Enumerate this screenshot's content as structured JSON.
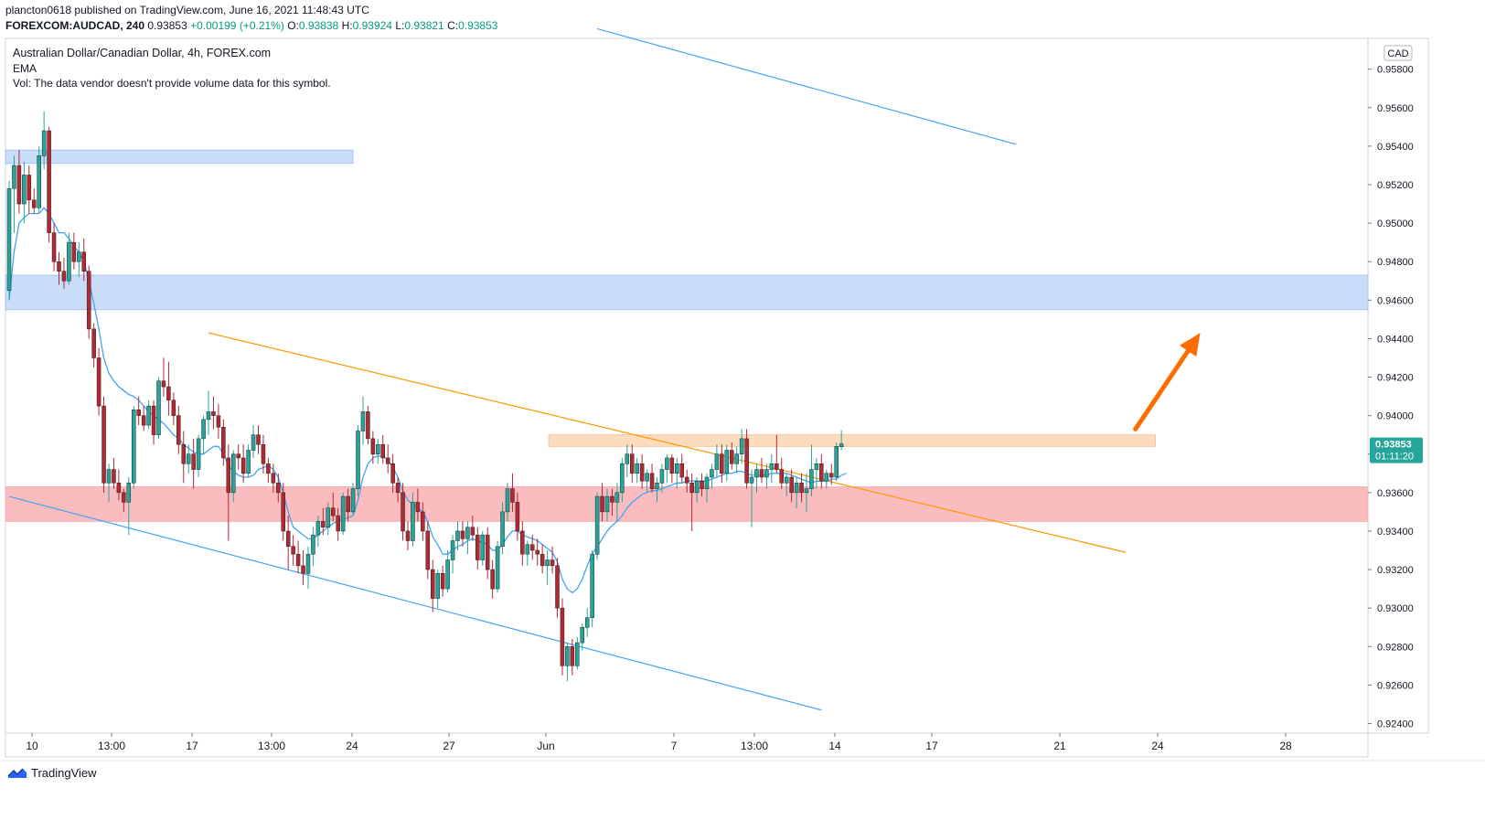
{
  "header": {
    "publisher_line": "plancton0618 published on TradingView.com, June 16, 2021 11:48:43 UTC",
    "symbol": "FOREXCOM:AUDCAD, 240",
    "last": "0.93853",
    "change": "+0.00199 (+0.21%)",
    "o_label": "O:",
    "o_value": "0.93838",
    "h_label": "H:",
    "h_value": "0.93924",
    "l_label": "L:",
    "l_value": "0.93821",
    "c_label": "C:",
    "c_value": "0.93853"
  },
  "legend": {
    "instrument": "Australian Dollar/Canadian Dollar, 4h, FOREX.com",
    "indicator": "EMA",
    "volume_note": "Vol: The data vendor doesn't provide volume data for this symbol."
  },
  "footer": {
    "brand": "TradingView"
  },
  "colors": {
    "up": "#26a69a",
    "down": "#b22833",
    "ema": "#42a5f5",
    "blue_zone": "#c9dcf8",
    "red_zone": "#fbbcbf",
    "orange_zone": "#fcdcbf",
    "blue_line": "#42a5f5",
    "orange_line": "#ff9800",
    "arrow": "#ff6d00",
    "price_label": "#26a69a"
  },
  "chart_data": {
    "type": "candlestick",
    "currency_label": "CAD",
    "current_price_label": "0.93853",
    "countdown_label": "01:11:20",
    "ylim": [
      0.9235,
      0.9596
    ],
    "y_ticks": [
      "0.95800",
      "0.95600",
      "0.95400",
      "0.95200",
      "0.95000",
      "0.94800",
      "0.94600",
      "0.94400",
      "0.94200",
      "0.94000",
      "0.93800",
      "0.93600",
      "0.93400",
      "0.93200",
      "0.93000",
      "0.92800",
      "0.92600",
      "0.92400"
    ],
    "x_ticks": [
      {
        "label": "10",
        "date": "2021-05-10"
      },
      {
        "label": "13:00",
        "date": "2021-05-13 13:00"
      },
      {
        "label": "17",
        "date": "2021-05-17"
      },
      {
        "label": "13:00",
        "date": "2021-05-20 13:00"
      },
      {
        "label": "24",
        "date": "2021-05-24"
      },
      {
        "label": "27",
        "date": "2021-05-27"
      },
      {
        "label": "Jun",
        "date": "2021-06-01"
      },
      {
        "label": "7",
        "date": "2021-06-07"
      },
      {
        "label": "13:00",
        "date": "2021-06-10 13:00"
      },
      {
        "label": "14",
        "date": "2021-06-14"
      },
      {
        "label": "17",
        "date": "2021-06-17"
      },
      {
        "label": "21",
        "date": "2021-06-21"
      },
      {
        "label": "24",
        "date": "2021-06-24"
      },
      {
        "label": "28",
        "date": "2021-06-28"
      }
    ],
    "candles": [
      [
        0.9465,
        0.9522,
        0.946,
        0.9518
      ],
      [
        0.9518,
        0.9535,
        0.9495,
        0.953
      ],
      [
        0.953,
        0.9538,
        0.9505,
        0.951
      ],
      [
        0.951,
        0.9532,
        0.95,
        0.9525
      ],
      [
        0.9525,
        0.953,
        0.9505,
        0.9512
      ],
      [
        0.9512,
        0.9518,
        0.9505,
        0.9508
      ],
      [
        0.9508,
        0.954,
        0.9505,
        0.9535
      ],
      [
        0.9535,
        0.9558,
        0.9528,
        0.9548
      ],
      [
        0.9548,
        0.955,
        0.949,
        0.9495
      ],
      [
        0.9495,
        0.95,
        0.9475,
        0.948
      ],
      [
        0.948,
        0.9485,
        0.9468,
        0.9475
      ],
      [
        0.9475,
        0.9482,
        0.9466,
        0.947
      ],
      [
        0.947,
        0.9495,
        0.9468,
        0.949
      ],
      [
        0.949,
        0.9495,
        0.9476,
        0.948
      ],
      [
        0.948,
        0.949,
        0.9472,
        0.9485
      ],
      [
        0.9485,
        0.9492,
        0.947,
        0.9475
      ],
      [
        0.9475,
        0.9478,
        0.944,
        0.9445
      ],
      [
        0.9445,
        0.9448,
        0.9425,
        0.943
      ],
      [
        0.943,
        0.9435,
        0.94,
        0.9405
      ],
      [
        0.9405,
        0.941,
        0.936,
        0.9365
      ],
      [
        0.9365,
        0.9375,
        0.9355,
        0.9372
      ],
      [
        0.9372,
        0.9378,
        0.9362,
        0.9365
      ],
      [
        0.9365,
        0.9372,
        0.9356,
        0.936
      ],
      [
        0.936,
        0.9362,
        0.935,
        0.9355
      ],
      [
        0.9355,
        0.9368,
        0.9338,
        0.9365
      ],
      [
        0.9365,
        0.9405,
        0.9362,
        0.9403
      ],
      [
        0.9403,
        0.941,
        0.9395,
        0.94
      ],
      [
        0.94,
        0.9405,
        0.9392,
        0.9395
      ],
      [
        0.9395,
        0.9408,
        0.9393,
        0.9405
      ],
      [
        0.9405,
        0.9408,
        0.9385,
        0.939
      ],
      [
        0.939,
        0.942,
        0.9388,
        0.9418
      ],
      [
        0.9418,
        0.943,
        0.941,
        0.9415
      ],
      [
        0.9415,
        0.9428,
        0.94,
        0.9408
      ],
      [
        0.9408,
        0.9412,
        0.9395,
        0.94
      ],
      [
        0.94,
        0.9405,
        0.938,
        0.9385
      ],
      [
        0.9385,
        0.9392,
        0.9365,
        0.9375
      ],
      [
        0.9375,
        0.9385,
        0.937,
        0.938
      ],
      [
        0.938,
        0.9388,
        0.9362,
        0.9372
      ],
      [
        0.9372,
        0.939,
        0.9368,
        0.9388
      ],
      [
        0.9388,
        0.94,
        0.938,
        0.9398
      ],
      [
        0.9398,
        0.9413,
        0.939,
        0.9402
      ],
      [
        0.9402,
        0.941,
        0.9393,
        0.94
      ],
      [
        0.94,
        0.9406,
        0.9388,
        0.9394
      ],
      [
        0.9394,
        0.9398,
        0.9374,
        0.9378
      ],
      [
        0.9378,
        0.9385,
        0.9335,
        0.936
      ],
      [
        0.936,
        0.9382,
        0.9355,
        0.938
      ],
      [
        0.938,
        0.9385,
        0.9372,
        0.9378
      ],
      [
        0.9378,
        0.9385,
        0.9365,
        0.937
      ],
      [
        0.937,
        0.9385,
        0.9368,
        0.9382
      ],
      [
        0.9382,
        0.9395,
        0.9378,
        0.939
      ],
      [
        0.939,
        0.9395,
        0.938,
        0.9385
      ],
      [
        0.9385,
        0.939,
        0.937,
        0.9375
      ],
      [
        0.9375,
        0.9378,
        0.9365,
        0.937
      ],
      [
        0.937,
        0.9375,
        0.936,
        0.9365
      ],
      [
        0.9365,
        0.937,
        0.9355,
        0.936
      ],
      [
        0.936,
        0.9365,
        0.9335,
        0.934
      ],
      [
        0.934,
        0.9348,
        0.932,
        0.9332
      ],
      [
        0.9332,
        0.9338,
        0.9322,
        0.9328
      ],
      [
        0.9328,
        0.9335,
        0.9318,
        0.9322
      ],
      [
        0.9322,
        0.933,
        0.9312,
        0.9318
      ],
      [
        0.9318,
        0.9332,
        0.931,
        0.9328
      ],
      [
        0.9328,
        0.9342,
        0.9322,
        0.9338
      ],
      [
        0.9338,
        0.9348,
        0.9332,
        0.9345
      ],
      [
        0.9345,
        0.9352,
        0.9338,
        0.9342
      ],
      [
        0.9342,
        0.9355,
        0.9338,
        0.9352
      ],
      [
        0.9352,
        0.936,
        0.9345,
        0.9348
      ],
      [
        0.9348,
        0.9352,
        0.9335,
        0.934
      ],
      [
        0.934,
        0.936,
        0.9338,
        0.9358
      ],
      [
        0.9358,
        0.9362,
        0.9345,
        0.935
      ],
      [
        0.935,
        0.9365,
        0.9348,
        0.9362
      ],
      [
        0.9362,
        0.9395,
        0.9358,
        0.9392
      ],
      [
        0.9392,
        0.941,
        0.9385,
        0.9402
      ],
      [
        0.9402,
        0.9405,
        0.9385,
        0.9388
      ],
      [
        0.9388,
        0.9392,
        0.9375,
        0.938
      ],
      [
        0.938,
        0.9388,
        0.9375,
        0.9385
      ],
      [
        0.9385,
        0.939,
        0.9375,
        0.9378
      ],
      [
        0.9378,
        0.9385,
        0.937,
        0.9375
      ],
      [
        0.9375,
        0.938,
        0.936,
        0.9365
      ],
      [
        0.9365,
        0.9368,
        0.9355,
        0.936
      ],
      [
        0.936,
        0.9365,
        0.9335,
        0.934
      ],
      [
        0.934,
        0.9345,
        0.933,
        0.9335
      ],
      [
        0.9335,
        0.936,
        0.9332,
        0.9355
      ],
      [
        0.9355,
        0.9362,
        0.9345,
        0.935
      ],
      [
        0.935,
        0.9355,
        0.9335,
        0.934
      ],
      [
        0.934,
        0.9345,
        0.9315,
        0.932
      ],
      [
        0.932,
        0.9325,
        0.9298,
        0.9305
      ],
      [
        0.9305,
        0.932,
        0.93,
        0.9318
      ],
      [
        0.9318,
        0.9322,
        0.9306,
        0.931
      ],
      [
        0.931,
        0.933,
        0.9308,
        0.9325
      ],
      [
        0.9325,
        0.9338,
        0.9318,
        0.9335
      ],
      [
        0.9335,
        0.9345,
        0.933,
        0.934
      ],
      [
        0.934,
        0.9345,
        0.9332,
        0.9336
      ],
      [
        0.9336,
        0.9345,
        0.9328,
        0.9342
      ],
      [
        0.9342,
        0.9348,
        0.9335,
        0.9338
      ],
      [
        0.9338,
        0.9342,
        0.932,
        0.9325
      ],
      [
        0.9325,
        0.934,
        0.9322,
        0.9338
      ],
      [
        0.9338,
        0.9342,
        0.9315,
        0.932
      ],
      [
        0.932,
        0.9325,
        0.9305,
        0.931
      ],
      [
        0.931,
        0.9335,
        0.9308,
        0.9332
      ],
      [
        0.9332,
        0.9355,
        0.9328,
        0.935
      ],
      [
        0.935,
        0.9365,
        0.9345,
        0.9362
      ],
      [
        0.9362,
        0.937,
        0.935,
        0.9355
      ],
      [
        0.9355,
        0.936,
        0.9335,
        0.934
      ],
      [
        0.934,
        0.9345,
        0.9322,
        0.9328
      ],
      [
        0.9328,
        0.9335,
        0.9322,
        0.9333
      ],
      [
        0.9333,
        0.9338,
        0.9325,
        0.933
      ],
      [
        0.933,
        0.9336,
        0.9322,
        0.9328
      ],
      [
        0.9328,
        0.9333,
        0.9318,
        0.9322
      ],
      [
        0.9322,
        0.933,
        0.9312,
        0.9325
      ],
      [
        0.9325,
        0.9332,
        0.9318,
        0.9322
      ],
      [
        0.9322,
        0.9326,
        0.9295,
        0.93
      ],
      [
        0.93,
        0.9305,
        0.9265,
        0.927
      ],
      [
        0.927,
        0.9282,
        0.9262,
        0.928
      ],
      [
        0.928,
        0.9284,
        0.9265,
        0.927
      ],
      [
        0.927,
        0.9285,
        0.9268,
        0.9282
      ],
      [
        0.9282,
        0.9292,
        0.9278,
        0.929
      ],
      [
        0.929,
        0.93,
        0.9285,
        0.9295
      ],
      [
        0.9295,
        0.933,
        0.929,
        0.9328
      ],
      [
        0.9328,
        0.936,
        0.9325,
        0.9358
      ],
      [
        0.9358,
        0.9365,
        0.9345,
        0.935
      ],
      [
        0.935,
        0.9362,
        0.9345,
        0.9358
      ],
      [
        0.9358,
        0.9362,
        0.9348,
        0.9355
      ],
      [
        0.9355,
        0.9365,
        0.9345,
        0.936
      ],
      [
        0.936,
        0.9378,
        0.9355,
        0.9375
      ],
      [
        0.9375,
        0.9385,
        0.9368,
        0.938
      ],
      [
        0.938,
        0.9385,
        0.9365,
        0.937
      ],
      [
        0.937,
        0.9378,
        0.9365,
        0.9375
      ],
      [
        0.9375,
        0.938,
        0.9362,
        0.9366
      ],
      [
        0.9366,
        0.9372,
        0.936,
        0.937
      ],
      [
        0.937,
        0.9375,
        0.936,
        0.9362
      ],
      [
        0.9362,
        0.9368,
        0.9355,
        0.9365
      ],
      [
        0.9365,
        0.9375,
        0.936,
        0.9372
      ],
      [
        0.9372,
        0.938,
        0.9365,
        0.9378
      ],
      [
        0.9378,
        0.938,
        0.9365,
        0.937
      ],
      [
        0.937,
        0.9378,
        0.9362,
        0.9375
      ],
      [
        0.9375,
        0.938,
        0.9365,
        0.9368
      ],
      [
        0.9368,
        0.9372,
        0.936,
        0.9365
      ],
      [
        0.9365,
        0.937,
        0.934,
        0.936
      ],
      [
        0.936,
        0.9368,
        0.9355,
        0.9366
      ],
      [
        0.9366,
        0.937,
        0.9358,
        0.9362
      ],
      [
        0.9362,
        0.937,
        0.9355,
        0.9368
      ],
      [
        0.9368,
        0.9375,
        0.9362,
        0.9372
      ],
      [
        0.9372,
        0.9385,
        0.9368,
        0.938
      ],
      [
        0.938,
        0.9385,
        0.9365,
        0.937
      ],
      [
        0.937,
        0.9385,
        0.9366,
        0.9382
      ],
      [
        0.9382,
        0.9386,
        0.9372,
        0.9375
      ],
      [
        0.9375,
        0.9384,
        0.937,
        0.938
      ],
      [
        0.938,
        0.9393,
        0.9375,
        0.9388
      ],
      [
        0.9388,
        0.9393,
        0.9362,
        0.9365
      ],
      [
        0.9365,
        0.9372,
        0.9342,
        0.9368
      ],
      [
        0.9368,
        0.9375,
        0.936,
        0.9372
      ],
      [
        0.9372,
        0.9378,
        0.9365,
        0.9368
      ],
      [
        0.9368,
        0.9375,
        0.9362,
        0.9372
      ],
      [
        0.9372,
        0.938,
        0.9365,
        0.9375
      ],
      [
        0.9375,
        0.939,
        0.937,
        0.9372
      ],
      [
        0.9372,
        0.9378,
        0.9362,
        0.9365
      ],
      [
        0.9365,
        0.937,
        0.9358,
        0.9368
      ],
      [
        0.9368,
        0.9372,
        0.9355,
        0.936
      ],
      [
        0.936,
        0.9368,
        0.9352,
        0.9365
      ],
      [
        0.9365,
        0.937,
        0.9355,
        0.936
      ],
      [
        0.936,
        0.937,
        0.935,
        0.9362
      ],
      [
        0.9362,
        0.9385,
        0.9358,
        0.9372
      ],
      [
        0.9372,
        0.9378,
        0.9362,
        0.9375
      ],
      [
        0.9375,
        0.938,
        0.9362,
        0.9366
      ],
      [
        0.9366,
        0.9372,
        0.9362,
        0.937
      ],
      [
        0.937,
        0.9375,
        0.9364,
        0.9368
      ],
      [
        0.9368,
        0.9386,
        0.9366,
        0.9384
      ],
      [
        0.93838,
        0.93924,
        0.93821,
        0.93853
      ]
    ],
    "ema": [
      0.946,
      0.9485,
      0.95,
      0.9503,
      0.9505,
      0.9505,
      0.9505,
      0.9508,
      0.9505,
      0.95,
      0.9495,
      0.9495,
      0.9492,
      0.9488,
      0.9485,
      0.948,
      0.947,
      0.9458,
      0.9445,
      0.943,
      0.9422,
      0.9418,
      0.9415,
      0.9413,
      0.9411,
      0.941,
      0.9408,
      0.9405,
      0.9402,
      0.94,
      0.9398,
      0.9396,
      0.9393,
      0.939,
      0.9388,
      0.9385,
      0.9383,
      0.9381,
      0.938,
      0.938,
      0.9382,
      0.9384,
      0.9384,
      0.938,
      0.9374,
      0.9371,
      0.9369,
      0.9368,
      0.9368,
      0.9369,
      0.9372,
      0.9373,
      0.9374,
      0.9372,
      0.9368,
      0.936,
      0.935,
      0.9342,
      0.934,
      0.9338,
      0.9336,
      0.9336,
      0.9338,
      0.934,
      0.9342,
      0.9344,
      0.9345,
      0.9346,
      0.9347,
      0.9348,
      0.9356,
      0.9368,
      0.9375,
      0.9378,
      0.9379,
      0.9379,
      0.9377,
      0.9373,
      0.9368,
      0.9361,
      0.9356,
      0.9354,
      0.9352,
      0.935,
      0.9345,
      0.9337,
      0.9333,
      0.9328,
      0.9328,
      0.933,
      0.9332,
      0.9333,
      0.9335,
      0.9336,
      0.9335,
      0.9334,
      0.9333,
      0.933,
      0.933,
      0.9333,
      0.9337,
      0.934,
      0.934,
      0.9338,
      0.9337,
      0.9336,
      0.9335,
      0.9333,
      0.9331,
      0.9329,
      0.9324,
      0.9315,
      0.931,
      0.9308,
      0.931,
      0.9315,
      0.9322,
      0.9328,
      0.9332,
      0.9336,
      0.934,
      0.9343,
      0.9345,
      0.9348,
      0.9352,
      0.9355,
      0.9357,
      0.9359,
      0.936,
      0.9361,
      0.9361,
      0.9362,
      0.9363,
      0.9364,
      0.9365,
      0.9365,
      0.9366,
      0.9366,
      0.9366,
      0.9366,
      0.9366,
      0.9367,
      0.9368,
      0.9369,
      0.937,
      0.937,
      0.9371,
      0.9371,
      0.937,
      0.9369,
      0.9369,
      0.9369,
      0.9369,
      0.937,
      0.937,
      0.937,
      0.937,
      0.9369,
      0.9368,
      0.9367,
      0.9366,
      0.9365,
      0.9366,
      0.9366,
      0.9366,
      0.9367,
      0.9367,
      0.9369,
      0.937
    ],
    "zones": [
      {
        "name": "blue-zone-top",
        "from": 0,
        "to": 69,
        "low": 0.9531,
        "high": 0.9538,
        "color": "#c9dcf8"
      },
      {
        "name": "blue-zone-mid",
        "from": 0,
        "to": 320,
        "low": 0.9455,
        "high": 0.9473,
        "color": "#c9dcf8"
      },
      {
        "name": "red-zone",
        "from": 0,
        "to": 320,
        "low": 0.9345,
        "high": 0.9363,
        "color": "#fbbcbf"
      },
      {
        "name": "orange-zone",
        "from": 109,
        "to": 230,
        "low": 0.9384,
        "high": 0.939,
        "color": "#fcdcbf"
      }
    ],
    "trendlines": [
      {
        "name": "blue-channel-top",
        "from": [
          118,
          0.9601
        ],
        "to": [
          202,
          0.9541
        ],
        "color": "#42a5f5"
      },
      {
        "name": "blue-channel-bottom",
        "from": [
          0,
          0.9358
        ],
        "to": [
          163,
          0.9247
        ],
        "color": "#42a5f5"
      },
      {
        "name": "orange-trendline",
        "from": [
          40,
          0.9443
        ],
        "to": [
          224,
          0.9329
        ],
        "color": "#ff9800"
      }
    ],
    "arrow": {
      "from": [
        226,
        0.9393
      ],
      "to": [
        239,
        0.9443
      ]
    }
  }
}
